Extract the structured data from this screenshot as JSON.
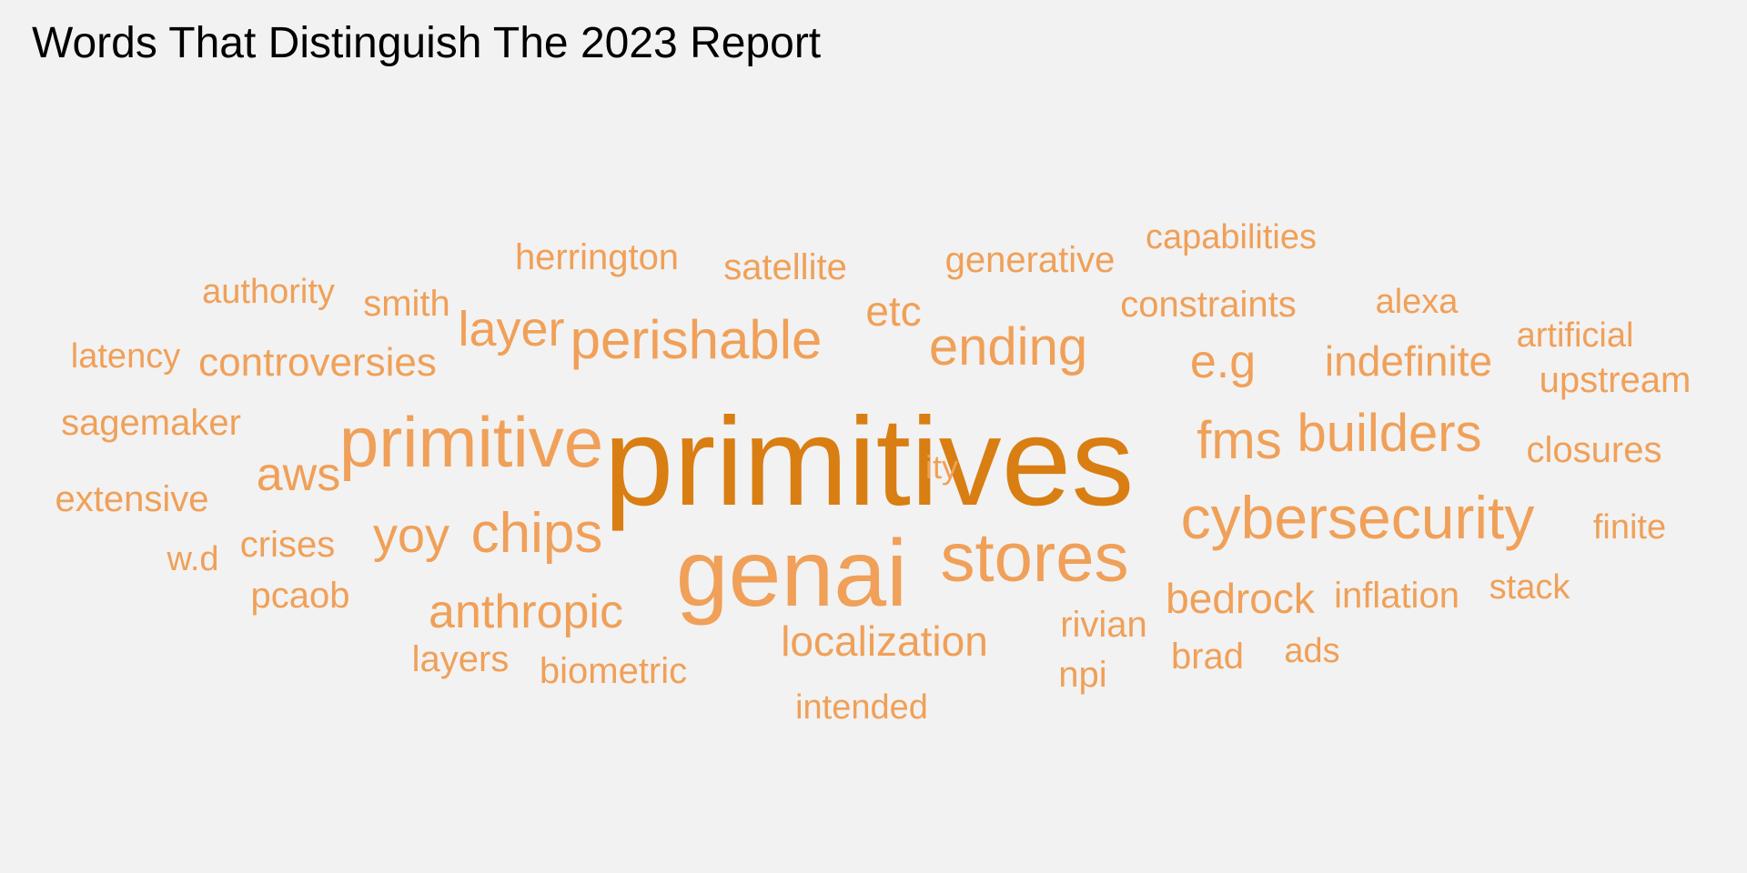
{
  "chart_data": {
    "type": "wordcloud",
    "title": "Words That Distinguish The 2023 Report",
    "colors": {
      "primary": "#d97e12",
      "secondary": "#f0a058",
      "background": "#f2f2f2"
    },
    "words": [
      {
        "text": "primitives",
        "weight": 100,
        "color": "#d97e12"
      },
      {
        "text": "genai",
        "weight": 64
      },
      {
        "text": "primitive",
        "weight": 49
      },
      {
        "text": "stores",
        "weight": 48
      },
      {
        "text": "cybersecurity",
        "weight": 44
      },
      {
        "text": "chips",
        "weight": 39
      },
      {
        "text": "perishable",
        "weight": 37
      },
      {
        "text": "builders",
        "weight": 36
      },
      {
        "text": "fms",
        "weight": 36
      },
      {
        "text": "ending",
        "weight": 35
      },
      {
        "text": "anthropic",
        "weight": 32
      },
      {
        "text": "e.g",
        "weight": 32
      },
      {
        "text": "yoy",
        "weight": 32
      },
      {
        "text": "layer",
        "weight": 32
      },
      {
        "text": "aws",
        "weight": 30
      },
      {
        "text": "indefinite",
        "weight": 29
      },
      {
        "text": "bedrock",
        "weight": 29
      },
      {
        "text": "localization",
        "weight": 28
      },
      {
        "text": "etc",
        "weight": 28
      },
      {
        "text": "controversies",
        "weight": 27
      },
      {
        "text": "herrington",
        "weight": 26
      },
      {
        "text": "generative",
        "weight": 26
      },
      {
        "text": "inflation",
        "weight": 25
      },
      {
        "text": "satellite",
        "weight": 25
      },
      {
        "text": "biometric",
        "weight": 25
      },
      {
        "text": "rivian",
        "weight": 25
      },
      {
        "text": "constraints",
        "weight": 25
      },
      {
        "text": "sagemaker",
        "weight": 25
      },
      {
        "text": "upstream",
        "weight": 25
      },
      {
        "text": "closures",
        "weight": 25
      },
      {
        "text": "crises",
        "weight": 25
      },
      {
        "text": "layers",
        "weight": 24
      },
      {
        "text": "brad",
        "weight": 24
      },
      {
        "text": "extensive",
        "weight": 24
      },
      {
        "text": "pcaob",
        "weight": 24
      },
      {
        "text": "npi",
        "weight": 24
      },
      {
        "text": "smith",
        "weight": 24
      },
      {
        "text": "capabilities",
        "weight": 24
      },
      {
        "text": "artificial",
        "weight": 24
      },
      {
        "text": "stack",
        "weight": 24
      },
      {
        "text": "intended",
        "weight": 23
      },
      {
        "text": "alexa",
        "weight": 23
      },
      {
        "text": "finite",
        "weight": 23
      },
      {
        "text": "ads",
        "weight": 23
      },
      {
        "text": "authority",
        "weight": 23
      },
      {
        "text": "latency",
        "weight": 23
      },
      {
        "text": "w.d",
        "weight": 23
      },
      {
        "text": "ity",
        "weight": 22
      }
    ]
  }
}
